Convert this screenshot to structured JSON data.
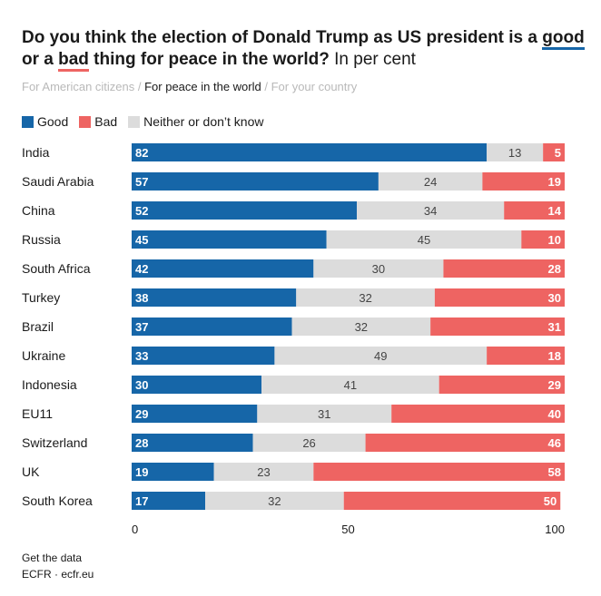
{
  "title": {
    "part1": "Do you think the election of Donald Trump as US president is a ",
    "good": "good",
    "part2": " or a ",
    "bad": "bad",
    "part3": " thing for peace in the world?",
    "unit": " In per cent"
  },
  "tabs": {
    "items": [
      "For American citizens",
      "For peace in the world",
      "For your country"
    ],
    "separator": " / ",
    "active_index": 1
  },
  "footer": {
    "get_data": "Get the data",
    "source": "ECFR · ecfr.eu"
  },
  "colors": {
    "good": "#1666a8",
    "bad": "#ee6462",
    "neither": "#dcdcdc"
  },
  "chart_data": {
    "type": "bar",
    "orientation": "horizontal",
    "stacked": true,
    "categories": [
      "India",
      "Saudi Arabia",
      "China",
      "Russia",
      "South Africa",
      "Turkey",
      "Brazil",
      "Ukraine",
      "Indonesia",
      "EU11",
      "Switzerland",
      "UK",
      "South Korea"
    ],
    "series": [
      {
        "name": "Good",
        "values": [
          82,
          57,
          52,
          45,
          42,
          38,
          37,
          33,
          30,
          29,
          28,
          19,
          17
        ]
      },
      {
        "name": "Neither or don’t know",
        "values": [
          13,
          24,
          34,
          45,
          30,
          32,
          32,
          49,
          41,
          31,
          26,
          23,
          32
        ]
      },
      {
        "name": "Bad",
        "values": [
          5,
          19,
          14,
          10,
          28,
          30,
          31,
          18,
          29,
          40,
          46,
          58,
          50
        ]
      }
    ],
    "legend": [
      "Good",
      "Bad",
      "Neither or don’t know"
    ],
    "legend_position": "top-left",
    "xlim": [
      0,
      100
    ],
    "xticks": [
      0,
      50,
      100
    ],
    "grid": false
  }
}
